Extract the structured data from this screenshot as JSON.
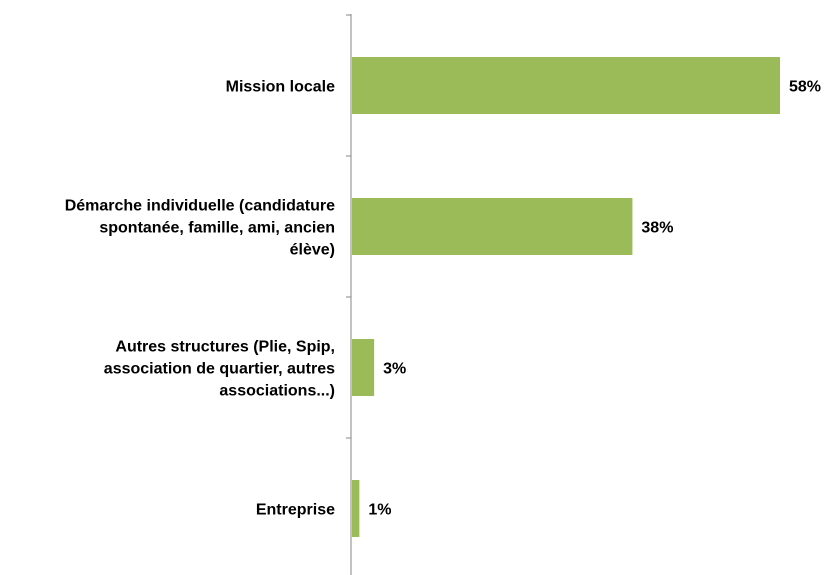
{
  "colors": {
    "bar": "#9bbb59",
    "axis": "#868686",
    "text": "#000000"
  },
  "chart_data": {
    "type": "bar",
    "orientation": "horizontal",
    "categories": [
      [
        "Mission locale"
      ],
      [
        "Démarche individuelle (candidature",
        "spontanée, famille, ami, ancien",
        "élève)"
      ],
      [
        "Autres structures (Plie, Spip,",
        "association de quartier, autres",
        "associations...)"
      ],
      [
        "Entreprise"
      ]
    ],
    "values": [
      58,
      38,
      3,
      1
    ],
    "data_labels": [
      "58%",
      "38%",
      "3%",
      "1%"
    ],
    "unit": "%",
    "xlim": [
      0,
      58
    ],
    "title": "",
    "xlabel": "",
    "ylabel": "",
    "grid": false,
    "legend": "none"
  }
}
